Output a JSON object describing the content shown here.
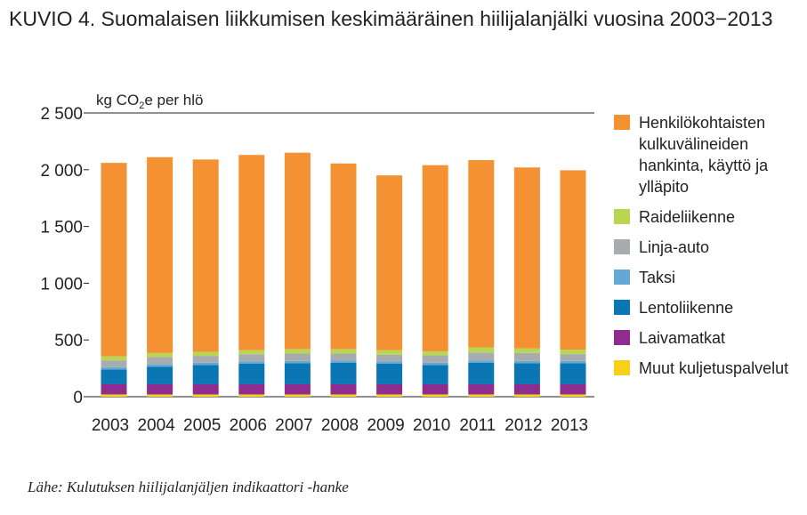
{
  "title": {
    "prefix": "KUVIO 4.",
    "text": "Suomalaisen liikkumisen keskimääräinen hiilijalanjälki vuosina 2003−2013"
  },
  "source": "Lähe: Kulutuksen hiilijalanjäljen indikaattori -hanke",
  "chart_data": {
    "type": "bar",
    "stacked": true,
    "unit_label": {
      "pre": "kg CO",
      "sub": "2",
      "post": "e per hlö"
    },
    "categories": [
      "2003",
      "2004",
      "2005",
      "2006",
      "2007",
      "2008",
      "2009",
      "2010",
      "2011",
      "2012",
      "2013"
    ],
    "ylim": [
      0,
      2500
    ],
    "yticks": [
      0,
      500,
      1000,
      1500,
      2000,
      2500
    ],
    "ytick_labels": [
      "0",
      "500",
      "1 000",
      "1 500",
      "2 000",
      "2 500"
    ],
    "legend_position": "right",
    "grid": false,
    "series": [
      {
        "name": "Muut kuljetuspalvelut",
        "color": "#f7d117",
        "values": [
          20,
          20,
          20,
          20,
          20,
          20,
          20,
          20,
          20,
          20,
          20
        ]
      },
      {
        "name": "Laivamatkat",
        "color": "#8e2c8f",
        "values": [
          90,
          90,
          90,
          90,
          90,
          90,
          90,
          90,
          90,
          90,
          90
        ]
      },
      {
        "name": "Lentoliikenne",
        "color": "#0a76b3",
        "values": [
          130,
          155,
          170,
          180,
          185,
          190,
          180,
          170,
          190,
          185,
          185
        ]
      },
      {
        "name": "Taksi",
        "color": "#64a8d4",
        "values": [
          20,
          20,
          20,
          20,
          20,
          20,
          20,
          20,
          20,
          20,
          20
        ]
      },
      {
        "name": "Linja-auto",
        "color": "#a9acae",
        "values": [
          60,
          65,
          60,
          65,
          65,
          60,
          60,
          65,
          70,
          70,
          60
        ]
      },
      {
        "name": "Raideliikenne",
        "color": "#b9d653",
        "values": [
          35,
          35,
          35,
          35,
          40,
          40,
          40,
          35,
          45,
          40,
          40
        ]
      },
      {
        "name": "Henkilökohtaisten kulkuvälineiden hankinta, käyttö ja ylläpito",
        "color": "#f39133",
        "values": [
          1705,
          1725,
          1695,
          1720,
          1730,
          1635,
          1540,
          1640,
          1650,
          1595,
          1580
        ]
      }
    ]
  }
}
